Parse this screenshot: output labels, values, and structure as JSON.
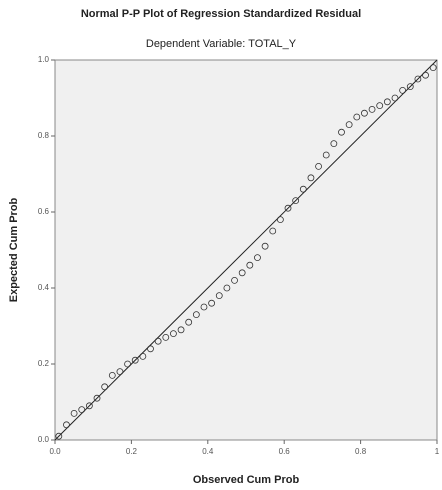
{
  "chart_data": {
    "type": "scatter",
    "title": "Normal P-P Plot of Regression Standardized Residual",
    "subtitle": "Dependent Variable: TOTAL_Y",
    "x_label": "Observed Cum Prob",
    "y_label": "Expected Cum Prob",
    "x": [
      0.01,
      0.03,
      0.05,
      0.07,
      0.09,
      0.11,
      0.13,
      0.15,
      0.17,
      0.19,
      0.21,
      0.23,
      0.25,
      0.27,
      0.29,
      0.31,
      0.33,
      0.35,
      0.37,
      0.39,
      0.41,
      0.43,
      0.45,
      0.47,
      0.49,
      0.51,
      0.53,
      0.55,
      0.57,
      0.59,
      0.61,
      0.63,
      0.65,
      0.67,
      0.69,
      0.71,
      0.73,
      0.75,
      0.77,
      0.79,
      0.81,
      0.83,
      0.85,
      0.87,
      0.89,
      0.91,
      0.93,
      0.95,
      0.97,
      0.99
    ],
    "values": [
      0.01,
      0.04,
      0.07,
      0.08,
      0.09,
      0.11,
      0.14,
      0.17,
      0.18,
      0.2,
      0.21,
      0.22,
      0.24,
      0.26,
      0.27,
      0.28,
      0.29,
      0.31,
      0.33,
      0.35,
      0.36,
      0.38,
      0.4,
      0.42,
      0.44,
      0.46,
      0.48,
      0.51,
      0.55,
      0.58,
      0.61,
      0.63,
      0.66,
      0.69,
      0.72,
      0.75,
      0.78,
      0.81,
      0.83,
      0.85,
      0.86,
      0.87,
      0.88,
      0.89,
      0.9,
      0.92,
      0.93,
      0.95,
      0.96,
      0.98
    ],
    "color": "#333333",
    "xlim": [
      0,
      1
    ],
    "ylim": [
      0,
      1
    ],
    "xticks": [
      {
        "value": 0,
        "label": "0.0"
      },
      0.2,
      0.4,
      0.6,
      0.8,
      {
        "value": 1,
        "label": "1"
      }
    ],
    "yticks": [
      {
        "value": 0,
        "label": "0.0"
      },
      0.2,
      0.4,
      0.6,
      0.8,
      {
        "value": 1,
        "label": "1.0"
      }
    ]
  }
}
